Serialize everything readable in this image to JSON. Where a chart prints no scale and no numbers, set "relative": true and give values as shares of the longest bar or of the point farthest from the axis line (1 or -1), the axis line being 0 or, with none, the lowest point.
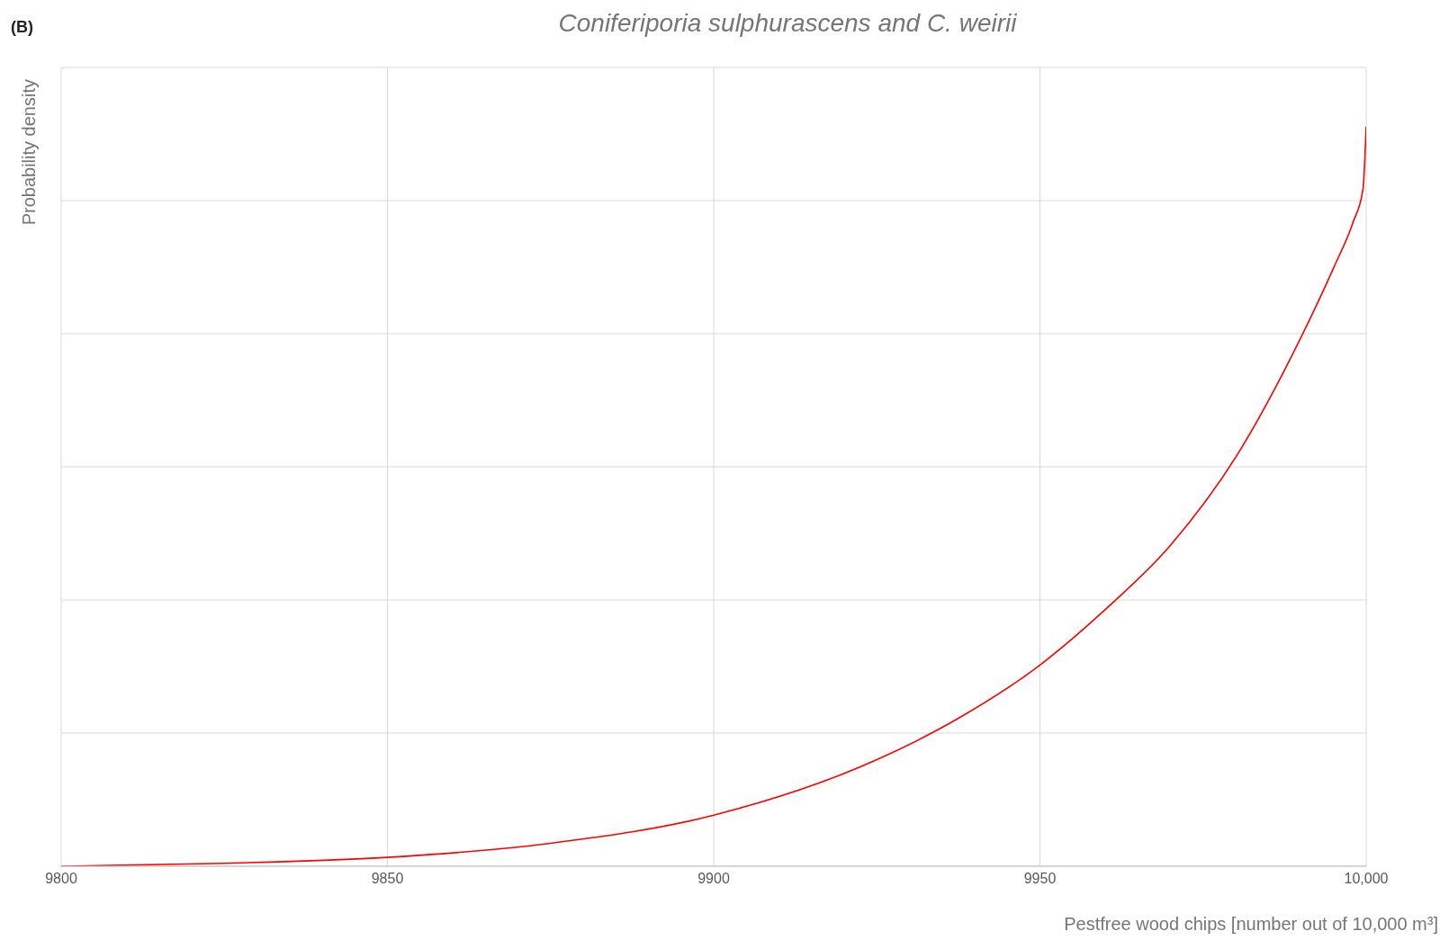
{
  "chart_data": {
    "type": "line",
    "title": "Coniferiporia sulphurascens and C. weirii",
    "xlabel": "Pestfree wood chips [number out of 10,000 m³]",
    "ylabel": "Probability density",
    "annotations": [
      "(B)"
    ],
    "relative": true,
    "x": [
      9800,
      9825,
      9850,
      9875,
      9900,
      9925,
      9937.5,
      9950,
      9960,
      9970,
      9980,
      9990,
      9995,
      9998,
      9999.5,
      10000
    ],
    "series": [
      {
        "color": "#ff0000",
        "values": [
          0,
          0.004,
          0.012,
          0.031,
          0.069,
          0.144,
          0.2,
          0.272,
          0.347,
          0.434,
          0.553,
          0.715,
          0.809,
          0.871,
          0.915,
          1
        ]
      }
    ],
    "xlim": [
      9800,
      10000
    ],
    "xticks": [
      9800,
      9850,
      9900,
      9950,
      {
        "value": 10000,
        "label": "10,000"
      }
    ],
    "grid": true,
    "marker": "none",
    "line_style": "solid"
  }
}
